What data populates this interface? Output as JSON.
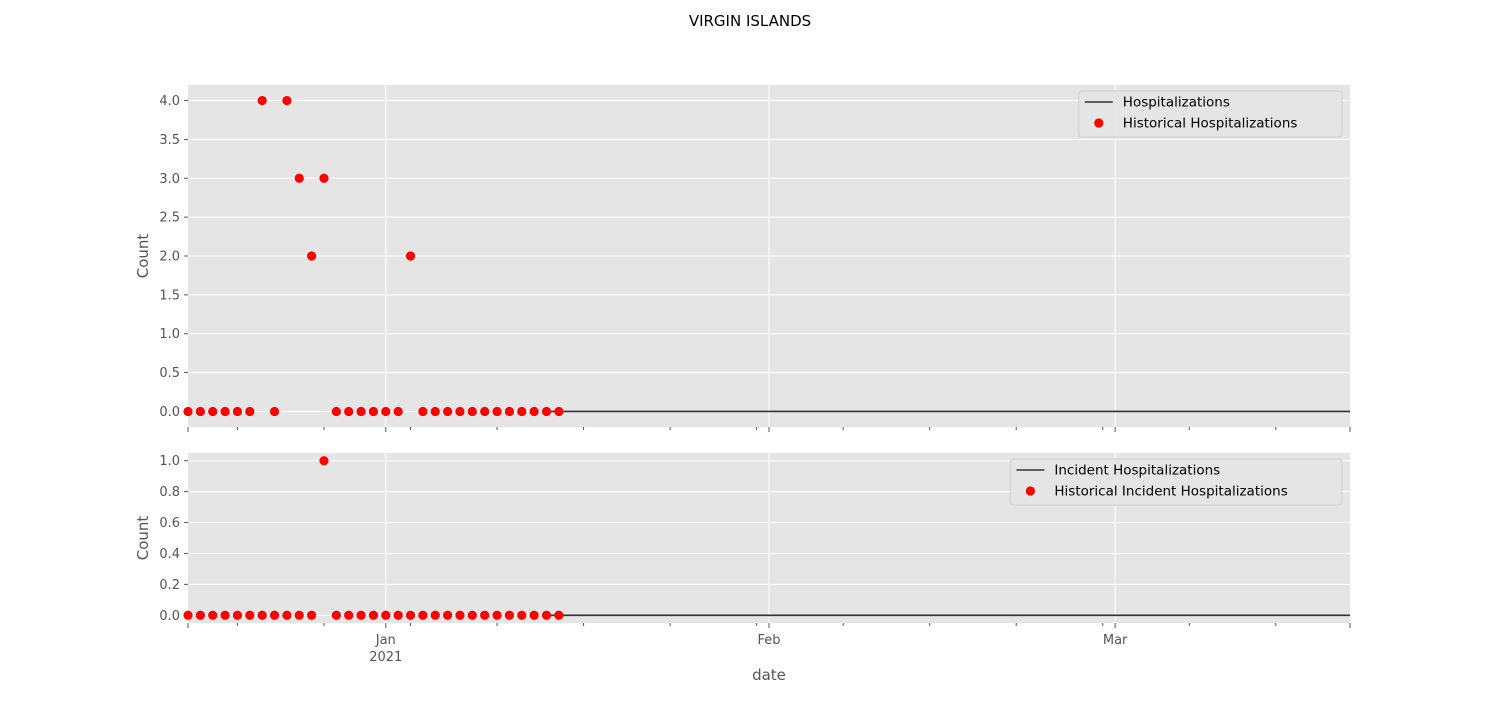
{
  "figure": {
    "title": "VIRGIN ISLANDS",
    "xlabel": "date"
  },
  "colors": {
    "panel_bg": "#e5e5e5",
    "grid": "#ffffff",
    "line": "#333333",
    "marker": "#ff0000",
    "text": "#555555"
  },
  "chart_data": [
    {
      "type": "scatter",
      "ylabel": "Count",
      "ylim": [
        -0.2,
        4.2
      ],
      "yticks": [
        0.0,
        0.5,
        1.0,
        1.5,
        2.0,
        2.5,
        3.0,
        3.5,
        4.0
      ],
      "ytick_labels": [
        "0.0",
        "0.5",
        "1.0",
        "1.5",
        "2.0",
        "2.5",
        "3.0",
        "3.5",
        "4.0"
      ],
      "xlim": [
        "2020-12-16",
        "2021-03-20"
      ],
      "legend_position": "top-right",
      "series": [
        {
          "name": "Hospitalizations",
          "kind": "line",
          "x": [
            "2021-01-14",
            "2021-03-20"
          ],
          "y": [
            0,
            0
          ]
        },
        {
          "name": "Historical Hospitalizations",
          "kind": "scatter",
          "x": [
            "2020-12-16",
            "2020-12-17",
            "2020-12-18",
            "2020-12-19",
            "2020-12-20",
            "2020-12-21",
            "2020-12-22",
            "2020-12-23",
            "2020-12-24",
            "2020-12-25",
            "2020-12-26",
            "2020-12-27",
            "2020-12-28",
            "2020-12-29",
            "2020-12-30",
            "2020-12-31",
            "2021-01-01",
            "2021-01-02",
            "2021-01-03",
            "2021-01-04",
            "2021-01-05",
            "2021-01-06",
            "2021-01-07",
            "2021-01-08",
            "2021-01-09",
            "2021-01-10",
            "2021-01-11",
            "2021-01-12",
            "2021-01-13",
            "2021-01-14",
            "2021-01-15"
          ],
          "y": [
            0,
            0,
            0,
            0,
            0,
            0,
            4,
            0,
            4,
            3,
            2,
            3,
            0,
            0,
            0,
            0,
            0,
            0,
            2,
            0,
            0,
            0,
            0,
            0,
            0,
            0,
            0,
            0,
            0,
            0,
            0
          ]
        }
      ]
    },
    {
      "type": "scatter",
      "ylabel": "Count",
      "ylim": [
        -0.05,
        1.05
      ],
      "yticks": [
        0.0,
        0.2,
        0.4,
        0.6,
        0.8,
        1.0
      ],
      "ytick_labels": [
        "0.0",
        "0.2",
        "0.4",
        "0.6",
        "0.8",
        "1.0"
      ],
      "xlim": [
        "2020-12-16",
        "2021-03-20"
      ],
      "xtick_labels": [
        {
          "date": "2021-01-01",
          "label": "Jan",
          "sub": "2021"
        },
        {
          "date": "2021-02-01",
          "label": "Feb",
          "sub": ""
        },
        {
          "date": "2021-03-01",
          "label": "Mar",
          "sub": ""
        }
      ],
      "legend_position": "top-right",
      "series": [
        {
          "name": "Incident Hospitalizations",
          "kind": "line",
          "x": [
            "2021-01-14",
            "2021-03-20"
          ],
          "y": [
            0,
            0
          ]
        },
        {
          "name": "Historical Incident Hospitalizations",
          "kind": "scatter",
          "x": [
            "2020-12-16",
            "2020-12-17",
            "2020-12-18",
            "2020-12-19",
            "2020-12-20",
            "2020-12-21",
            "2020-12-22",
            "2020-12-23",
            "2020-12-24",
            "2020-12-25",
            "2020-12-26",
            "2020-12-27",
            "2020-12-28",
            "2020-12-29",
            "2020-12-30",
            "2020-12-31",
            "2021-01-01",
            "2021-01-02",
            "2021-01-03",
            "2021-01-04",
            "2021-01-05",
            "2021-01-06",
            "2021-01-07",
            "2021-01-08",
            "2021-01-09",
            "2021-01-10",
            "2021-01-11",
            "2021-01-12",
            "2021-01-13",
            "2021-01-14",
            "2021-01-15"
          ],
          "y": [
            0,
            0,
            0,
            0,
            0,
            0,
            0,
            0,
            0,
            0,
            0,
            1,
            0,
            0,
            0,
            0,
            0,
            0,
            0,
            0,
            0,
            0,
            0,
            0,
            0,
            0,
            0,
            0,
            0,
            0,
            0
          ]
        }
      ]
    }
  ]
}
